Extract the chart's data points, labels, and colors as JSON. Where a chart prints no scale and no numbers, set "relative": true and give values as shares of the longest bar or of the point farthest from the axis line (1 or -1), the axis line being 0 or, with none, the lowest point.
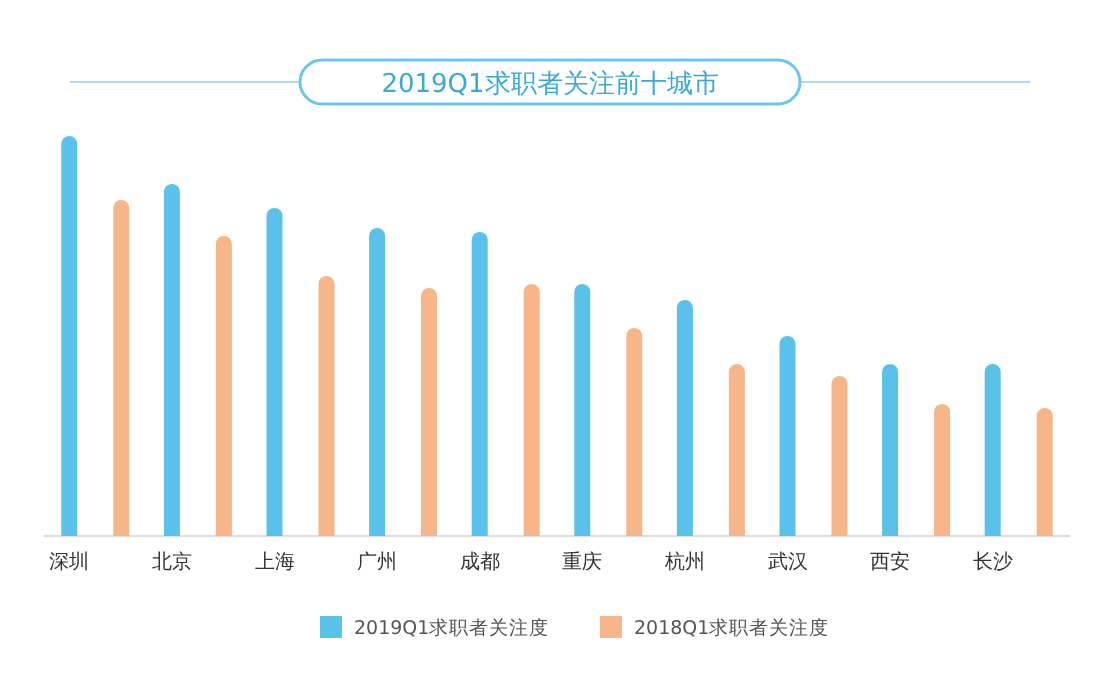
{
  "chart_data": {
    "type": "bar",
    "title": "2019Q1求职者关注前十城市",
    "relative": true,
    "legend": "bottom",
    "categories": [
      "深圳",
      "北京",
      "上海",
      "广州",
      "成都",
      "重庆",
      "杭州",
      "武汉",
      "西安",
      "长沙"
    ],
    "series": [
      {
        "name": "2019Q1求职者关注度",
        "color": "#5ac1ea",
        "values": [
          1,
          0.88,
          0.82,
          0.77,
          0.76,
          0.63,
          0.59,
          0.5,
          0.43,
          0.43
        ]
      },
      {
        "name": "2018Q1求职者关注度",
        "color": "#f7b58a",
        "values": [
          0.84,
          0.75,
          0.65,
          0.62,
          0.63,
          0.52,
          0.43,
          0.4,
          0.33,
          0.32
        ]
      }
    ]
  }
}
